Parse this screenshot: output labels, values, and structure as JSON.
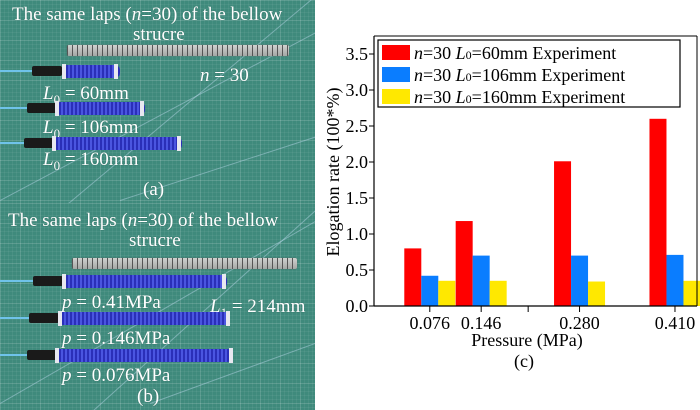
{
  "panel_a": {
    "title_line1_pre": "The same laps (",
    "title_n": "n",
    "title_line1_post": "=30) of the bellow",
    "title_line2": "strucre",
    "n_label_var": "n",
    "n_label_val": " = 30",
    "lengths": [
      {
        "var": "L",
        "sub": "0",
        "val": " = 60mm"
      },
      {
        "var": "L",
        "sub": "0",
        "val": " = 106mm"
      },
      {
        "var": "L",
        "sub": "0",
        "val": " = 160mm"
      }
    ],
    "caption": "(a)"
  },
  "panel_b": {
    "title_line1_pre": "The same laps (",
    "title_n": "n",
    "title_line1_post": "=30) of the bellow",
    "title_line2": "strucre",
    "pressures": [
      {
        "var": "p",
        "val": " = 0.41MPa"
      },
      {
        "var": "p",
        "val": " = 0.146MPa"
      },
      {
        "var": "p",
        "val": " = 0.076MPa"
      }
    ],
    "length_label": {
      "var": "L",
      "sub": "1",
      "val": " = 214mm"
    },
    "caption": "(b)"
  },
  "chart_data": {
    "type": "bar",
    "title": "",
    "caption": "(c)",
    "xlabel": "Pressure (MPa)",
    "ylabel": "Elogation rate (100*%)",
    "categories": [
      "0.076",
      "0.146",
      "0.280",
      "0.410"
    ],
    "category_values": [
      0.076,
      0.146,
      0.28,
      0.41
    ],
    "xlim": [
      0.0,
      0.44
    ],
    "x_ticks": [
      0.076,
      0.146,
      0.21,
      0.28,
      0.41
    ],
    "ylim": [
      0.0,
      3.6
    ],
    "y_ticks": [
      "0.0",
      "0.5",
      "1.0",
      "1.5",
      "2.0",
      "2.5",
      "3.0",
      "3.5"
    ],
    "grid": false,
    "legend_position": "top-left",
    "series": [
      {
        "name_var": "n",
        "name_mid": "=30 ",
        "name_L": "L",
        "name_sub": "0",
        "name_post": "=60mm Experiment",
        "name": "n=30 L0=60mm Experiment",
        "color": "#ff0000",
        "values": [
          0.8,
          1.18,
          2.01,
          2.6
        ]
      },
      {
        "name_var": "n",
        "name_mid": "=30 ",
        "name_L": "L",
        "name_sub": "0",
        "name_post": "=106mm Experiment",
        "name": "n=30 L0=106mm Experiment",
        "color": "#0a7dff",
        "values": [
          0.42,
          0.7,
          0.7,
          0.71
        ]
      },
      {
        "name_var": "n",
        "name_mid": "=30 ",
        "name_L": "L",
        "name_sub": "0",
        "name_post": "=160mm Experiment",
        "name": "n=30 L0=160mm Experiment",
        "color": "#ffe800",
        "values": [
          0.35,
          0.35,
          0.34,
          0.35
        ]
      }
    ]
  }
}
